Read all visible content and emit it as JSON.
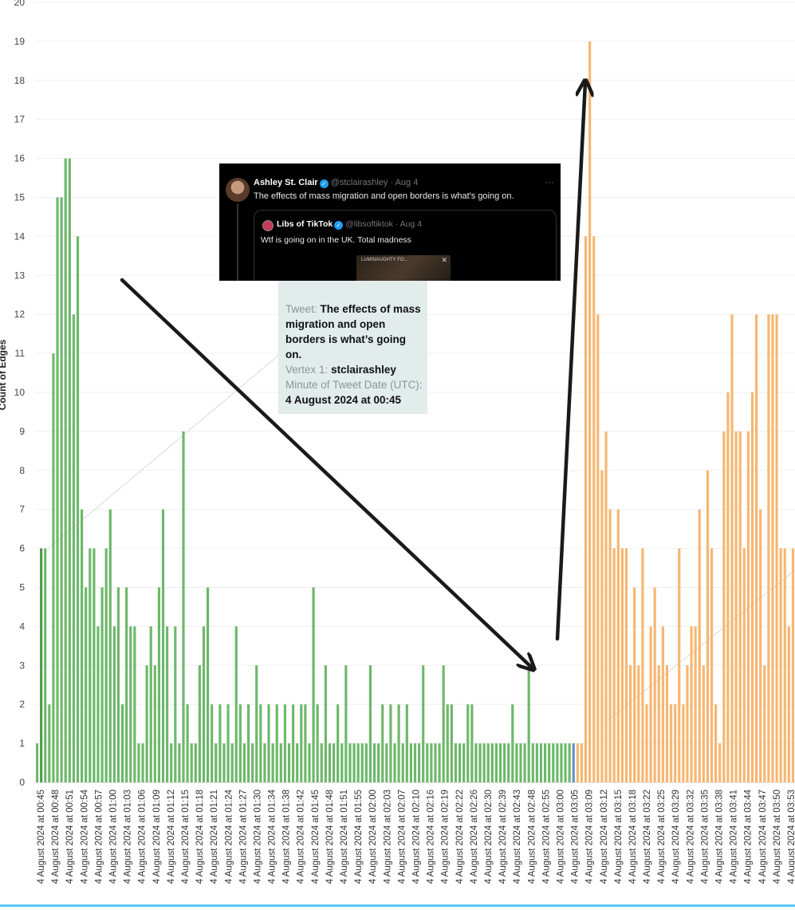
{
  "chart_data": {
    "type": "bar",
    "ylabel": "Count of Edges",
    "ylim": [
      0,
      20
    ],
    "yticks": [
      0,
      1,
      2,
      3,
      4,
      5,
      6,
      7,
      8,
      9,
      10,
      11,
      12,
      13,
      14,
      15,
      16,
      17,
      18,
      19,
      20
    ],
    "grid": "horizontal",
    "colors": {
      "before": "#6cb86a",
      "before_dark": "#4f9a4d",
      "transition": "#6a8fc7",
      "after": "#f7b670"
    },
    "series": [
      {
        "name": "before",
        "color": "#6cb86a",
        "values": [
          1,
          6,
          6,
          2,
          11,
          15,
          15,
          16,
          16,
          12,
          14,
          7,
          5,
          6,
          6,
          4,
          5,
          6,
          7,
          4,
          5,
          2,
          5,
          4,
          4,
          1,
          1,
          3,
          4,
          3,
          5,
          7,
          4,
          1,
          4,
          1,
          9,
          2,
          1,
          1,
          3,
          4,
          5,
          2,
          1,
          2,
          1,
          2,
          1,
          4,
          2,
          1,
          2,
          1,
          3,
          2,
          1,
          2,
          1,
          2,
          1,
          2,
          1,
          2,
          1,
          2,
          2,
          1,
          5,
          2,
          1,
          3,
          1,
          1,
          2,
          1,
          3,
          1,
          1,
          1,
          1,
          1,
          3,
          1,
          1,
          2,
          1,
          2,
          1,
          2,
          1,
          2,
          1,
          1,
          1,
          3,
          1,
          1,
          1,
          1,
          3,
          2,
          2,
          1,
          1,
          1,
          2,
          2,
          1,
          1,
          1,
          1,
          1,
          1,
          1,
          1,
          1,
          2,
          1,
          1,
          1,
          3,
          1,
          1,
          1,
          1,
          1,
          1,
          1,
          1,
          1,
          1
        ]
      },
      {
        "name": "transition",
        "color": "#6a8fc7",
        "values": [
          1
        ]
      },
      {
        "name": "after",
        "color": "#f7b670",
        "values": [
          1,
          1,
          14,
          19,
          14,
          12,
          8,
          9,
          7,
          6,
          7,
          6,
          6,
          3,
          5,
          3,
          6,
          2,
          4,
          5,
          3,
          4,
          3,
          2,
          2,
          6,
          2,
          3,
          4,
          4,
          7,
          3,
          8,
          6,
          2,
          1,
          9,
          10,
          12,
          9,
          9,
          6,
          9,
          10,
          12,
          7,
          3,
          12,
          12,
          12,
          6,
          6,
          4,
          6
        ]
      }
    ],
    "x_tick_labels": [
      "4 August 2024 at 00:45",
      "4 August 2024 at 00:48",
      "4 August 2024 at 00:51",
      "4 August 2024 at 00:54",
      "4 August 2024 at 00:57",
      "4 August 2024 at 01:00",
      "4 August 2024 at 01:03",
      "4 August 2024 at 01:06",
      "4 August 2024 at 01:09",
      "4 August 2024 at 01:12",
      "4 August 2024 at 01:15",
      "4 August 2024 at 01:18",
      "4 August 2024 at 01:21",
      "4 August 2024 at 01:24",
      "4 August 2024 at 01:27",
      "4 August 2024 at 01:30",
      "4 August 2024 at 01:34",
      "4 August 2024 at 01:38",
      "4 August 2024 at 01:42",
      "4 August 2024 at 01:45",
      "4 August 2024 at 01:48",
      "4 August 2024 at 01:51",
      "4 August 2024 at 01:55",
      "4 August 2024 at 02:00",
      "4 August 2024 at 02:03",
      "4 August 2024 at 02:07",
      "4 August 2024 at 02:10",
      "4 August 2024 at 02:16",
      "4 August 2024 at 02:19",
      "4 August 2024 at 02:22",
      "4 August 2024 at 02:26",
      "4 August 2024 at 02:30",
      "4 August 2024 at 02:39",
      "4 August 2024 at 02:43",
      "4 August 2024 at 02:48",
      "4 August 2024 at 02:55",
      "4 August 2024 at 03:00",
      "4 August 2024 at 03:05",
      "4 August 2024 at 03:09",
      "4 August 2024 at 03:12",
      "4 August 2024 at 03:15",
      "4 August 2024 at 03:18",
      "4 August 2024 at 03:22",
      "4 August 2024 at 03:25",
      "4 August 2024 at 03:29",
      "4 August 2024 at 03:32",
      "4 August 2024 at 03:35",
      "4 August 2024 at 03:38",
      "4 August 2024 at 03:41",
      "4 August 2024 at 03:44",
      "4 August 2024 at 03:47",
      "4 August 2024 at 03:50",
      "4 August 2024 at 03:53"
    ],
    "annotations": [
      "arrow from early peak down to 02:55 spike",
      "arrow rising to 03:09 peak"
    ]
  },
  "tweet_card": {
    "author_name": "Ashley St. Clair",
    "author_handle": "@stclairashley · Aug 4",
    "more_icon": "ellipsis-icon",
    "text": "The effects of mass migration and open borders is what's going on.",
    "quoted": {
      "author_name": "Libs of TikTok",
      "author_handle": "@libsoftiktok · Aug 4",
      "text": "Wtf is going on in the UK. Total madness",
      "media_label": "LUMINAUGHTY FO...",
      "media_close": "✕"
    }
  },
  "tooltip": {
    "tweet_key": "Tweet:",
    "tweet_value": "The effects of mass migration and open borders is what’s going on.",
    "vertex_key": "Vertex 1:",
    "vertex_value": "stclairashley",
    "minute_key": "Minute of Tweet Date (UTC):",
    "minute_value": "4 August 2024 at 00:45"
  }
}
